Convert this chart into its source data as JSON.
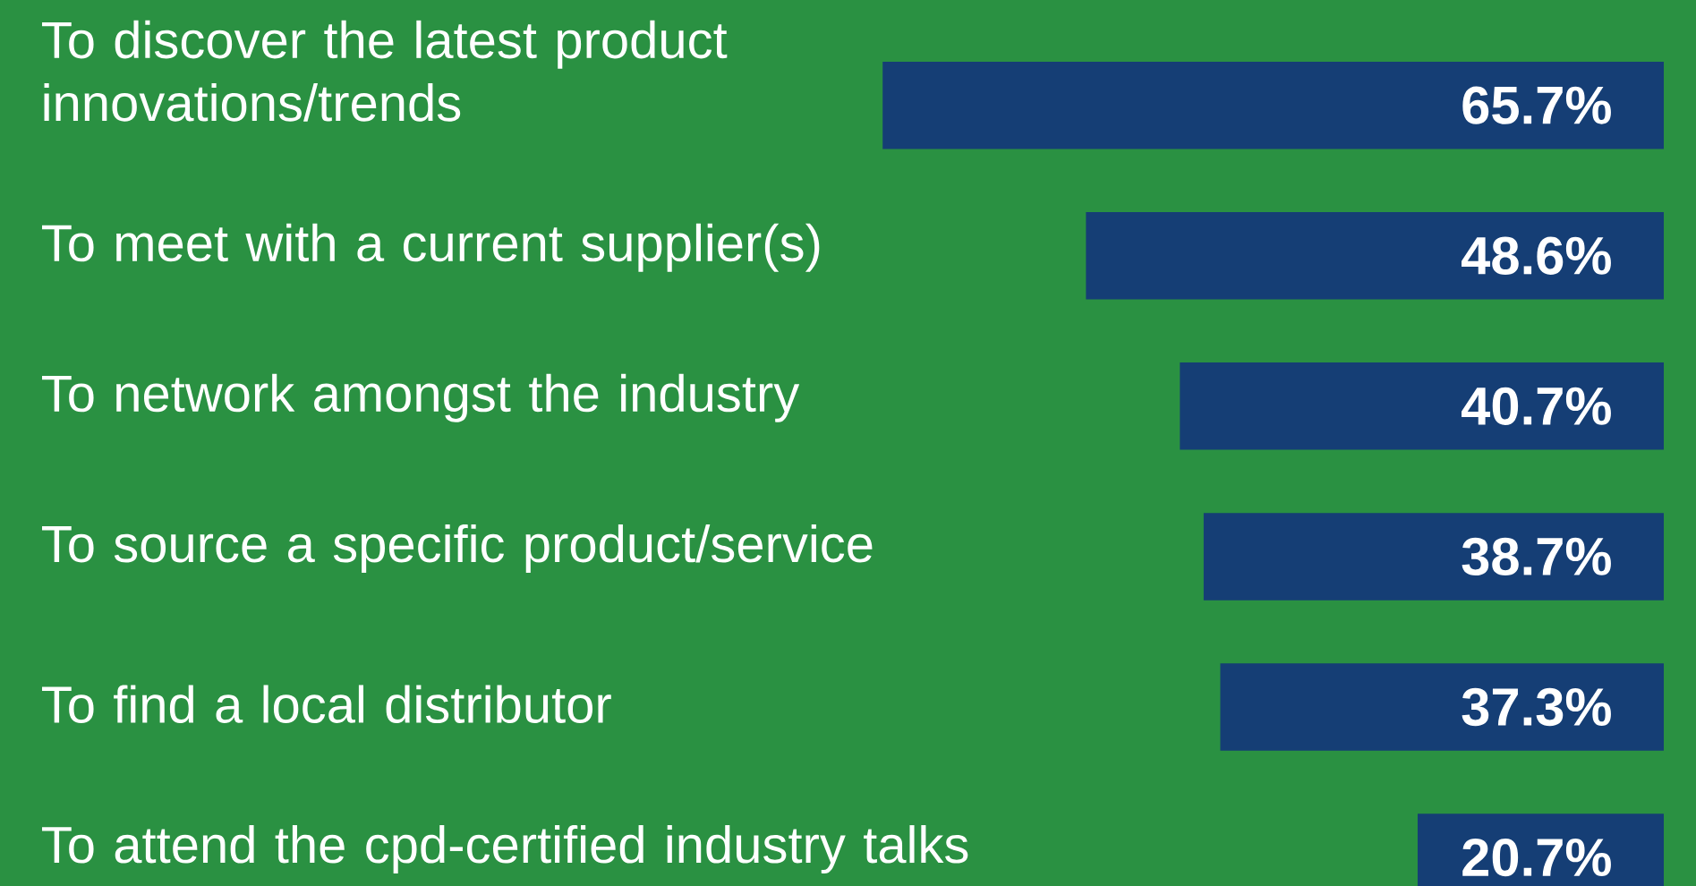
{
  "chart_data": {
    "type": "bar",
    "orientation": "horizontal",
    "categories": [
      "To discover the latest product innovations/trends",
      "To meet with a current supplier(s)",
      "To network amongst the industry",
      "To source a specific product/service",
      "To find a local distributor",
      "To attend the cpd-certified industry talks"
    ],
    "values": [
      65.7,
      48.6,
      40.7,
      38.7,
      37.3,
      20.7
    ],
    "value_labels": [
      "65.7%",
      "48.6%",
      "40.7%",
      "38.7%",
      "37.3%",
      "20.7%"
    ],
    "color": "#153e75"
  }
}
